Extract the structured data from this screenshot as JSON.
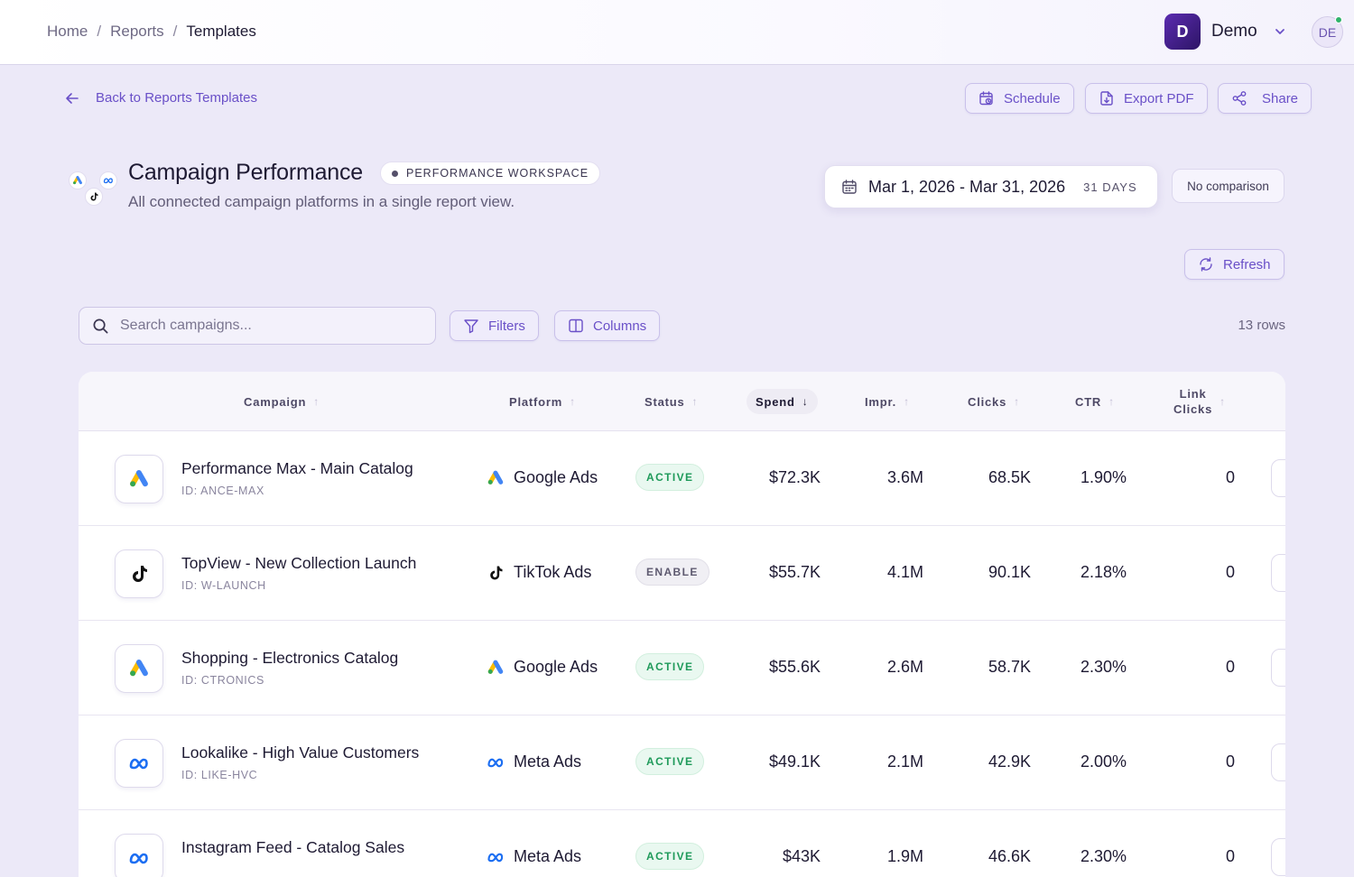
{
  "breadcrumb": {
    "home": "Home",
    "reports": "Reports",
    "current": "Templates",
    "separator": "/"
  },
  "workspace": {
    "initial": "D",
    "name": "Demo"
  },
  "user": {
    "initials": "DE"
  },
  "actions": {
    "back": "Back to Reports Templates",
    "schedule": "Schedule",
    "export": "Export PDF",
    "share": "Share",
    "refresh": "Refresh"
  },
  "report": {
    "title": "Campaign Performance",
    "badge": "PERFORMANCE WORKSPACE",
    "subtitle": "All connected campaign platforms in a single report view."
  },
  "date_range": {
    "label": "Mar 1, 2026 - Mar 31, 2026",
    "days": "31 DAYS"
  },
  "comparison": "No comparison",
  "toolbar": {
    "search_placeholder": "Search campaigns...",
    "filters": "Filters",
    "columns": "Columns",
    "row_count": "13 rows"
  },
  "table": {
    "headers": {
      "campaign": "Campaign",
      "platform": "Platform",
      "status": "Status",
      "spend": "Spend",
      "impr": "Impr.",
      "clicks": "Clicks",
      "ctr": "CTR",
      "link_clicks_1": "Link",
      "link_clicks_2": "Clicks"
    },
    "rows": [
      {
        "name": "Performance Max - Main Catalog",
        "id": "ID: ANCE-MAX",
        "platform": "Google Ads",
        "platform_icon": "google-ads-icon",
        "status": "ACTIVE",
        "spend": "$72.3K",
        "impr": "3.6M",
        "clicks": "68.5K",
        "ctr": "1.90%",
        "link_clicks": "0"
      },
      {
        "name": "TopView - New Collection Launch",
        "id": "ID: W-LAUNCH",
        "platform": "TikTok Ads",
        "platform_icon": "tiktok-icon",
        "status": "ENABLE",
        "spend": "$55.7K",
        "impr": "4.1M",
        "clicks": "90.1K",
        "ctr": "2.18%",
        "link_clicks": "0"
      },
      {
        "name": "Shopping - Electronics Catalog",
        "id": "ID: CTRONICS",
        "platform": "Google Ads",
        "platform_icon": "google-ads-icon",
        "status": "ACTIVE",
        "spend": "$55.6K",
        "impr": "2.6M",
        "clicks": "58.7K",
        "ctr": "2.30%",
        "link_clicks": "0"
      },
      {
        "name": "Lookalike - High Value Customers",
        "id": "ID: LIKE-HVC",
        "platform": "Meta Ads",
        "platform_icon": "meta-icon",
        "status": "ACTIVE",
        "spend": "$49.1K",
        "impr": "2.1M",
        "clicks": "42.9K",
        "ctr": "2.00%",
        "link_clicks": "0"
      },
      {
        "name": "Instagram Feed - Catalog Sales",
        "id": "",
        "platform": "Meta Ads",
        "platform_icon": "meta-icon",
        "status": "ACTIVE",
        "spend": "$43K",
        "impr": "1.9M",
        "clicks": "46.6K",
        "ctr": "2.30%",
        "link_clicks": "0"
      }
    ]
  },
  "colors": {
    "accent": "#6a50c8",
    "active_status": "#1f9a5a",
    "background": "#ece9f8"
  }
}
